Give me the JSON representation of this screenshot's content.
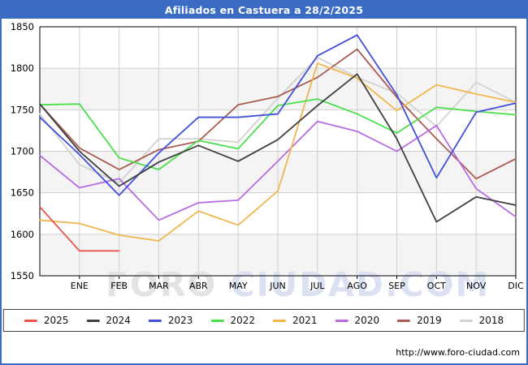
{
  "title_bar": {
    "text": "Afiliados en Castuera a 28/2/2025",
    "bg_color": "#3b6cc4"
  },
  "watermark": {
    "part1": "FORO ",
    "part2": "CIUDAD.COM",
    "color1": "#e3e3e3",
    "color2": "#dbe1f2"
  },
  "footer": {
    "url": "http://www.foro-ciudad.com"
  },
  "chart_data": {
    "type": "line",
    "title": "Afiliados en Castuera a 28/2/2025",
    "xlabel": "",
    "ylabel": "",
    "x_tick_labels": [
      "ENE",
      "FEB",
      "MAR",
      "ABR",
      "MAY",
      "JUN",
      "JUL",
      "AGO",
      "SEP",
      "OCT",
      "NOV",
      "DIC"
    ],
    "note_first_point": "each series has an extra starting point on the left axis (previous December value)",
    "y_ticks": [
      1550,
      1600,
      1650,
      1700,
      1750,
      1800,
      1850
    ],
    "ylim": [
      1550,
      1850
    ],
    "grid": true,
    "band_shading": [
      1800,
      1700,
      1600
    ],
    "legend_position": "bottom",
    "series": [
      {
        "name": "2025",
        "color": "#e8534a",
        "values": [
          1633,
          1580,
          1580,
          null,
          null,
          null,
          null,
          null,
          null,
          null,
          null,
          null,
          null
        ]
      },
      {
        "name": "2024",
        "color": "#3f3f3f",
        "values": [
          1757,
          1700,
          1658,
          1687,
          1707,
          1688,
          1714,
          1755,
          1793,
          1715,
          1615,
          1645,
          1635
        ]
      },
      {
        "name": "2023",
        "color": "#4350dc",
        "values": [
          1741,
          1696,
          1647,
          1698,
          1741,
          1741,
          1745,
          1815,
          1840,
          1768,
          1668,
          1747,
          1758
        ]
      },
      {
        "name": "2022",
        "color": "#4bdf4b",
        "values": [
          1756,
          1757,
          1692,
          1678,
          1713,
          1703,
          1755,
          1763,
          1745,
          1722,
          1753,
          1748,
          1744
        ]
      },
      {
        "name": "2021",
        "color": "#f2b64e",
        "values": [
          1617,
          1613,
          1599,
          1592,
          1628,
          1611,
          1652,
          1806,
          1788,
          1749,
          1780,
          1769,
          1759
        ]
      },
      {
        "name": "2020",
        "color": "#b86ce4",
        "values": [
          1695,
          1656,
          1667,
          1617,
          1638,
          1641,
          1688,
          1736,
          1724,
          1700,
          1731,
          1655,
          1621
        ]
      },
      {
        "name": "2019",
        "color": "#a85c52",
        "values": [
          1757,
          1704,
          1678,
          1702,
          1712,
          1756,
          1766,
          1789,
          1823,
          1765,
          1715,
          1667,
          1691
        ]
      },
      {
        "name": "2018",
        "color": "#d2d2d2",
        "values": [
          1745,
          1684,
          1662,
          1715,
          1715,
          1711,
          1764,
          1813,
          1789,
          1770,
          1730,
          1783,
          1759
        ]
      }
    ]
  }
}
